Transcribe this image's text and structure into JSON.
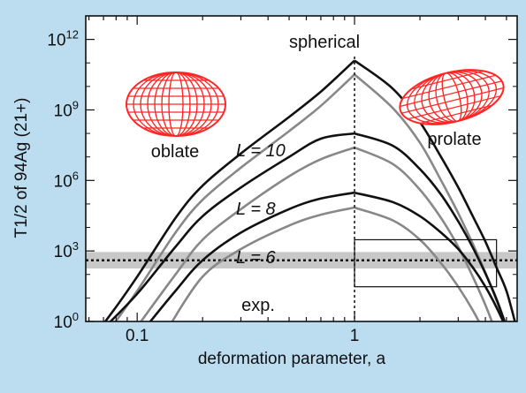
{
  "chart_data": {
    "type": "line",
    "xscale": "log",
    "yscale": "log",
    "xlim": [
      0.058,
      5.6
    ],
    "ylim": [
      1,
      10000000000000.0
    ],
    "xlabel": "deformation parameter, a",
    "ylabel": "T1/2 of 94Ag (21+)",
    "x_ticks": [
      {
        "value": 0.1,
        "label": "0.1"
      },
      {
        "value": 1,
        "label": "1"
      }
    ],
    "y_ticks": [
      {
        "value": 1,
        "mantissa": "10",
        "exp": "0"
      },
      {
        "value": 1000,
        "mantissa": "10",
        "exp": "3"
      },
      {
        "value": 1000000,
        "mantissa": "10",
        "exp": "6"
      },
      {
        "value": 1000000000,
        "mantissa": "10",
        "exp": "9"
      },
      {
        "value": 1000000000000,
        "mantissa": "10",
        "exp": "12"
      }
    ],
    "annotations": {
      "spherical": "spherical",
      "oblate": "oblate",
      "prolate": "prolate",
      "exp": "exp.",
      "L10": "L = 10",
      "L8": "L = 8",
      "L6": "L = 6"
    },
    "series": [
      {
        "color": "#111111",
        "peak_x": 1.0,
        "peak_y": 126000000000,
        "left_x": [
          0.058,
          0.07,
          0.1,
          0.15,
          0.2,
          0.3,
          0.5,
          0.7,
          1.0
        ],
        "left_y": [
          0.12,
          0.8,
          80,
          25000,
          600000,
          14000000,
          500000000,
          6000000000,
          126000000000
        ],
        "right_x": [
          1.0,
          1.5,
          2.0,
          2.5,
          3.0,
          3.5,
          4.0,
          4.5,
          5.0,
          5.5
        ],
        "right_y": [
          126000000000,
          8000000000,
          300000000,
          10000000,
          500000,
          30000,
          2500,
          200,
          20,
          0.8
        ]
      },
      {
        "color": "#888888",
        "peak_x": 1.0,
        "peak_y": 32000000000,
        "left_x": [
          0.058,
          0.07,
          0.1,
          0.15,
          0.2,
          0.3,
          0.5,
          0.7,
          1.0
        ],
        "left_y": [
          0.03,
          0.2,
          20,
          6000,
          150000,
          3500000,
          125000000,
          1500000000,
          32000000000
        ],
        "right_x": [
          1.0,
          1.5,
          2.0,
          2.5,
          3.0,
          3.5,
          4.0,
          4.5,
          5.0
        ],
        "right_y": [
          32000000000,
          1200000000,
          40000000,
          1000000,
          40000,
          2000,
          120,
          8,
          0.6
        ]
      },
      {
        "color": "#111111",
        "peak_x": 1.0,
        "peak_y": 100000000,
        "left_x": [
          0.07,
          0.1,
          0.15,
          0.2,
          0.3,
          0.5,
          0.7,
          1.0
        ],
        "left_y": [
          0.5,
          15,
          1500,
          30000,
          500000,
          10000000,
          60000000,
          100000000
        ],
        "right_x": [
          1.0,
          1.5,
          2.0,
          2.5,
          3.0,
          3.5,
          4.0,
          4.5,
          5.0
        ],
        "right_y": [
          100000000,
          30000000,
          3000000,
          250000,
          18000,
          1400,
          110,
          9,
          0.6
        ]
      },
      {
        "color": "#888888",
        "peak_x": 1.0,
        "peak_y": 25000000,
        "left_x": [
          0.1,
          0.15,
          0.2,
          0.3,
          0.5,
          0.7,
          1.0
        ],
        "left_y": [
          0.6,
          100,
          3000,
          60000,
          1500000,
          8000000,
          25000000
        ],
        "right_x": [
          1.0,
          1.5,
          2.0,
          2.5,
          3.0,
          3.5,
          4.0,
          4.5
        ],
        "right_y": [
          25000000,
          5000000,
          400000,
          25000,
          1500,
          80,
          5,
          0.3
        ]
      },
      {
        "color": "#111111",
        "peak_x": 1.0,
        "peak_y": 300000,
        "left_x": [
          0.11,
          0.15,
          0.2,
          0.3,
          0.5,
          0.7,
          1.0
        ],
        "left_y": [
          0.6,
          20,
          400,
          6000,
          60000,
          170000,
          300000
        ],
        "right_x": [
          1.0,
          1.5,
          2.0,
          2.5,
          3.0,
          3.5,
          4.0,
          4.5,
          5.0
        ],
        "right_y": [
          300000,
          120000,
          30000,
          6000,
          1200,
          200,
          30,
          4,
          0.5
        ]
      },
      {
        "color": "#888888",
        "peak_x": 1.0,
        "peak_y": 70000,
        "left_x": [
          0.14,
          0.2,
          0.3,
          0.5,
          0.7,
          1.0
        ],
        "left_y": [
          0.6,
          80,
          1200,
          12000,
          35000,
          70000
        ],
        "right_x": [
          1.0,
          1.5,
          2.0,
          2.5,
          3.0,
          3.5,
          4.0
        ],
        "right_y": [
          70000,
          20000,
          3000,
          300,
          30,
          3,
          0.3
        ]
      }
    ],
    "experiment": {
      "value": 400,
      "band_low": 180,
      "band_high": 900
    },
    "highlight_box": {
      "x0": 1.0,
      "x1": 4.5,
      "y0": 30,
      "y1": 3000
    },
    "spherical_line_x": 1.0,
    "colors": {
      "background": "#bcdcf0",
      "plot_area": "#ffffff",
      "black_curve": "#111111",
      "gray_curve": "#888888",
      "exp_band": "#c8c8c8",
      "nucleus": "#ff2626"
    }
  }
}
